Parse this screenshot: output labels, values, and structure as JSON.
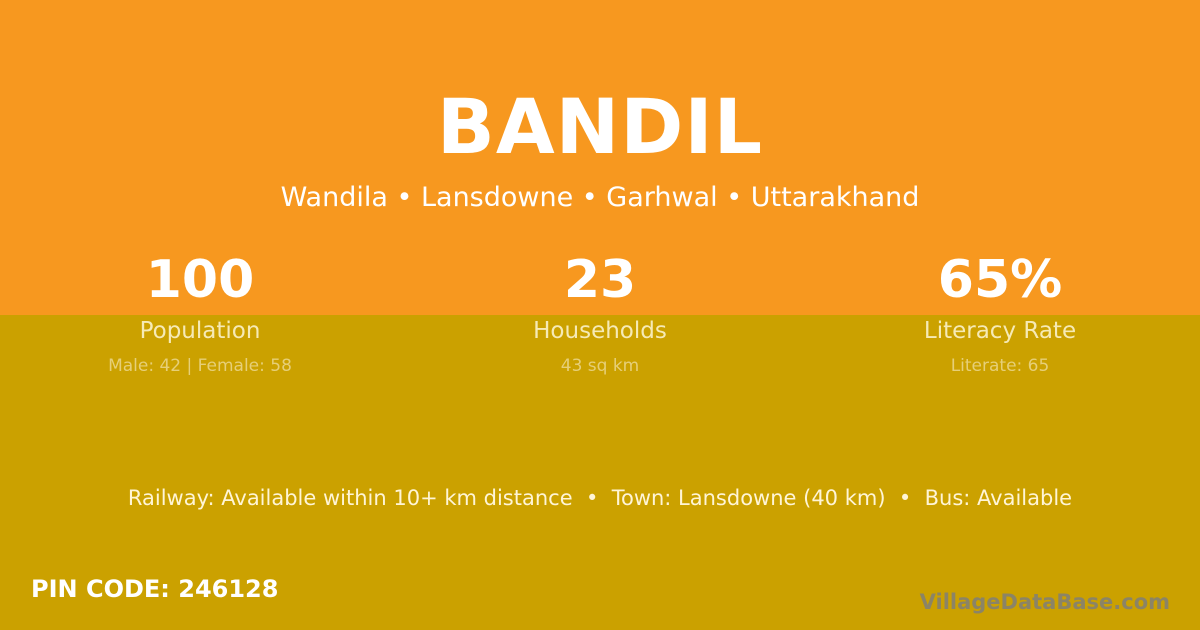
{
  "village": {
    "name": "BANDIL",
    "location": "Wandila • Lansdowne • Garhwal • Uttarakhand"
  },
  "stats": [
    {
      "value": "100",
      "label": "Population",
      "detail": "Male: 42 | Female: 58"
    },
    {
      "value": "23",
      "label": "Households",
      "detail": "43 sq km"
    },
    {
      "value": "65%",
      "label": "Literacy Rate",
      "detail": "Literate: 65"
    }
  ],
  "facilities": "Railway: Available within 10+ km distance  •  Town: Lansdowne (40 km)  •  Bus: Available",
  "pin_code": "PIN CODE: 246128",
  "watermark": "VillageDataBase.com",
  "colors": {
    "top": "#f7981f",
    "bottom": "#cba100"
  }
}
